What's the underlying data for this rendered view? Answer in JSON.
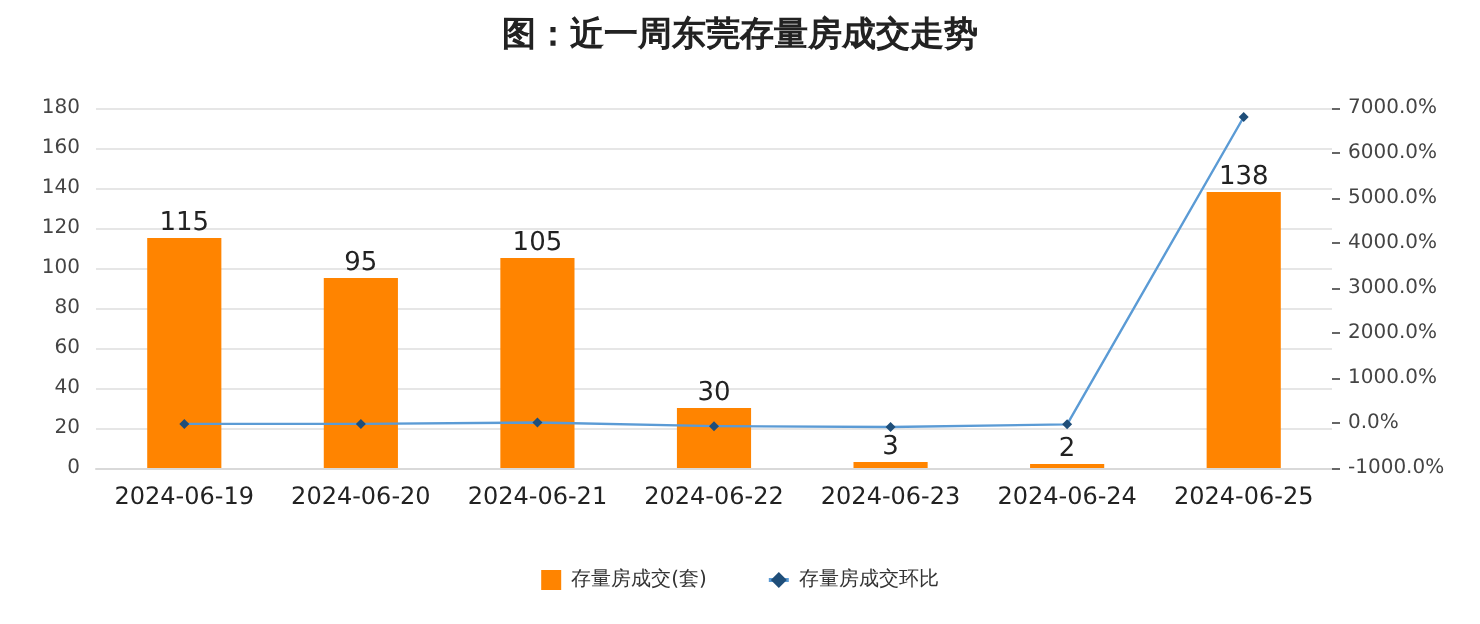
{
  "chart_data": {
    "type": "bar",
    "title": "图：近一周东莞存量房成交走势",
    "categories": [
      "2024-06-19",
      "2024-06-20",
      "2024-06-21",
      "2024-06-22",
      "2024-06-23",
      "2024-06-24",
      "2024-06-25"
    ],
    "series": [
      {
        "name": "存量房成交(套)",
        "color": "#ff8400",
        "values": [
          115,
          95,
          105,
          30,
          3,
          2,
          138
        ],
        "value_labels": [
          "115",
          "95",
          "105",
          "30",
          "3",
          "2",
          "138"
        ]
      },
      {
        "name": "存量房成交环比",
        "type": "line",
        "axis": "y2",
        "color": "#5b9bd5",
        "marker": "diamond",
        "values": [
          -20,
          -20,
          10,
          -70,
          -90,
          -30,
          6800
        ]
      }
    ],
    "ylim": [
      0,
      180
    ],
    "yticks": [
      0,
      20,
      40,
      60,
      80,
      100,
      120,
      140,
      160,
      180
    ],
    "y2lim": [
      -1000,
      7000
    ],
    "y2ticks": [
      {
        "value": -1000,
        "label": "-1000.0%"
      },
      {
        "value": 0,
        "label": "0.0%"
      },
      {
        "value": 1000,
        "label": "1000.0%"
      },
      {
        "value": 2000,
        "label": "2000.0%"
      },
      {
        "value": 3000,
        "label": "3000.0%"
      },
      {
        "value": 4000,
        "label": "4000.0%"
      },
      {
        "value": 5000,
        "label": "5000.0%"
      },
      {
        "value": 6000,
        "label": "6000.0%"
      },
      {
        "value": 7000,
        "label": "7000.0%"
      }
    ],
    "grid": "y",
    "legend": "bottom"
  }
}
